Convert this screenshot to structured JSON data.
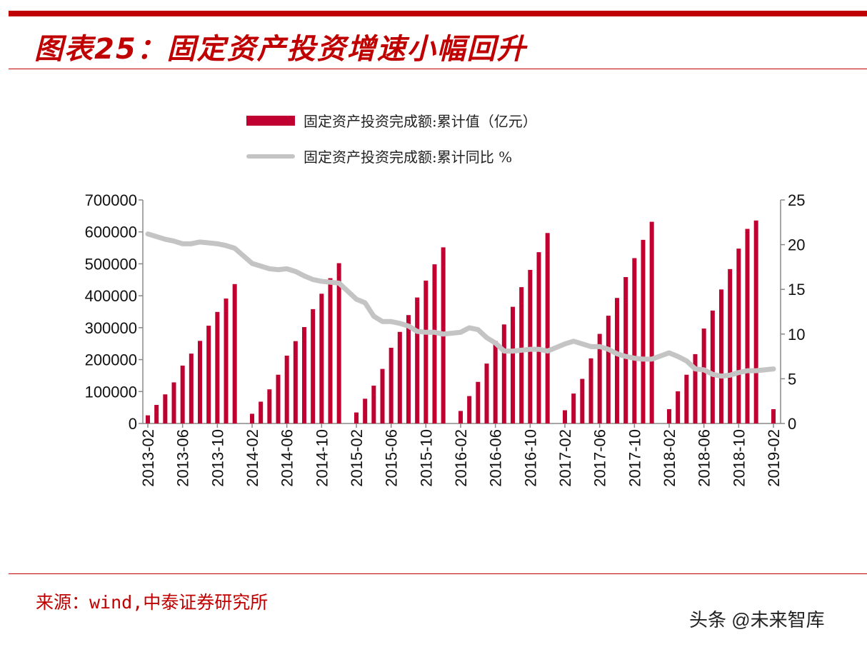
{
  "header": {
    "title": "图表25：固定资产投资增速小幅回升"
  },
  "footer": {
    "source": "来源：wind,中泰证券研究所",
    "watermark": "头条 @未来智库"
  },
  "colors": {
    "bar": "#c00030",
    "line": "#c4c4c4",
    "accent": "#c00000"
  },
  "chart_data": {
    "type": "bar+line",
    "title": "",
    "legend_position": "top",
    "series": [
      {
        "name": "固定资产投资完成额:累计值（亿元）",
        "type": "bar",
        "axis": "left",
        "values": [
          25420,
          58092,
          91148,
          128698,
          181318,
          218860,
          258747,
          306237,
          349283,
          391283,
          436528,
          30350,
          68322,
          106903,
          152702,
          212431,
          257888,
          301887,
          358082,
          406351,
          455000,
          502005,
          34478,
          77511,
          118558,
          170848,
          237132,
          286769,
          339463,
          394531,
          447425,
          498414,
          551590,
          39194,
          85843,
          130255,
          187671,
          258360,
          310159,
          365373,
          426906,
          481007,
          536470,
          596501,
          41378,
          93777,
          139670,
          203970,
          280605,
          337523,
          393037,
          458478,
          517818,
          575057,
          631684,
          44887,
          100763,
          152654,
          217207,
          297316,
          353628,
          419734,
          483442,
          547567,
          609441,
          635636,
          44849
        ]
      },
      {
        "name": "固定资产投资完成额:累计同比 %",
        "type": "line",
        "axis": "right",
        "values": [
          21.2,
          20.9,
          20.6,
          20.4,
          20.1,
          20.1,
          20.3,
          20.2,
          20.1,
          19.9,
          19.6,
          17.9,
          17.6,
          17.3,
          17.2,
          17.3,
          17.0,
          16.5,
          16.1,
          15.9,
          15.8,
          15.7,
          13.9,
          13.5,
          12.0,
          11.4,
          11.4,
          11.2,
          10.9,
          10.3,
          10.2,
          10.2,
          10.0,
          10.2,
          10.7,
          10.5,
          9.6,
          9.0,
          8.1,
          8.1,
          8.2,
          8.3,
          8.3,
          8.1,
          8.9,
          9.2,
          8.9,
          8.6,
          8.6,
          8.3,
          7.8,
          7.5,
          7.3,
          7.2,
          7.2,
          7.9,
          7.5,
          7.0,
          6.1,
          6.0,
          5.5,
          5.3,
          5.4,
          5.7,
          5.9,
          5.9,
          6.1
        ]
      }
    ],
    "x_note_months": [
      "02",
      "03",
      "04",
      "05",
      "06",
      "07",
      "08",
      "09",
      "10",
      "11",
      "12"
    ],
    "years": [
      2013,
      2014,
      2015,
      2016,
      2017,
      2018,
      2019
    ],
    "x_tick_labels": [
      "2013-02",
      "2013-06",
      "2013-10",
      "2014-02",
      "2014-06",
      "2014-10",
      "2015-02",
      "2015-06",
      "2015-10",
      "2016-02",
      "2016-06",
      "2016-10",
      "2017-02",
      "2017-06",
      "2017-10",
      "2018-02",
      "2018-06",
      "2018-10",
      "2019-02"
    ],
    "y_left": {
      "lim": [
        0,
        700000
      ],
      "ticks": [
        "0",
        "100000",
        "200000",
        "300000",
        "400000",
        "500000",
        "600000",
        "700000"
      ]
    },
    "y_right": {
      "lim": [
        0,
        25
      ],
      "ticks": [
        "0",
        "5",
        "10",
        "15",
        "20",
        "25"
      ]
    },
    "grid": false
  }
}
